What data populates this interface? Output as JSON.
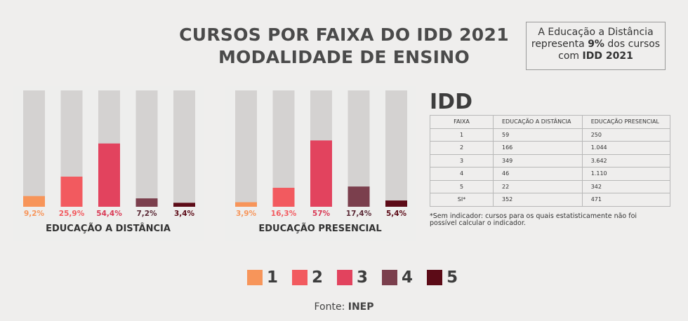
{
  "title_line1": "CURSOS POR FAIXA DO IDD 2021",
  "title_line2": "MODALIDADE DE ENSINO",
  "callout": {
    "line1": "A Educação a Distância",
    "line2_pre": "representa ",
    "line2_bold": "9%",
    "line2_post": " dos cursos",
    "line3_pre": "com ",
    "line3_bold": "IDD 2021"
  },
  "colors": {
    "track": "#d4d2d1",
    "f1": "#f7955a",
    "f2": "#f25a5f",
    "f3": "#e2435e",
    "f4": "#7b3f4d",
    "f5": "#5c0b17"
  },
  "chart_data": [
    {
      "type": "bar",
      "title": "EDUCAÇÃO A DISTÂNCIA",
      "categories": [
        "1",
        "2",
        "3",
        "4",
        "5"
      ],
      "values": [
        9.2,
        25.9,
        54.4,
        7.2,
        3.4
      ],
      "labels": [
        "9,2%",
        "25,9%",
        "54,4%",
        "7,2%",
        "3,4%"
      ],
      "ylim": [
        0,
        100
      ]
    },
    {
      "type": "bar",
      "title": "EDUCAÇÃO PRESENCIAL",
      "categories": [
        "1",
        "2",
        "3",
        "4",
        "5"
      ],
      "values": [
        3.9,
        16.3,
        57,
        17.4,
        5.4
      ],
      "labels": [
        "3,9%",
        "16,3%",
        "57%",
        "17,4%",
        "5,4%"
      ],
      "ylim": [
        0,
        100
      ]
    }
  ],
  "table": {
    "heading": "IDD",
    "columns": [
      "FAIXA",
      "EDUCAÇÃO A DISTÂNCIA",
      "EDUCAÇÃO PRESENCIAL"
    ],
    "rows": [
      [
        "1",
        "59",
        "250"
      ],
      [
        "2",
        "166",
        "1.044"
      ],
      [
        "3",
        "349",
        "3.642"
      ],
      [
        "4",
        "46",
        "1.110"
      ],
      [
        "5",
        "22",
        "342"
      ],
      [
        "SI*",
        "352",
        "471"
      ]
    ]
  },
  "footnote": "*Sem indicador: cursos para os quais estatisticamente não foi possível calcular o indicador.",
  "legend": [
    "1",
    "2",
    "3",
    "4",
    "5"
  ],
  "source_pre": "Fonte: ",
  "source_bold": "INEP"
}
